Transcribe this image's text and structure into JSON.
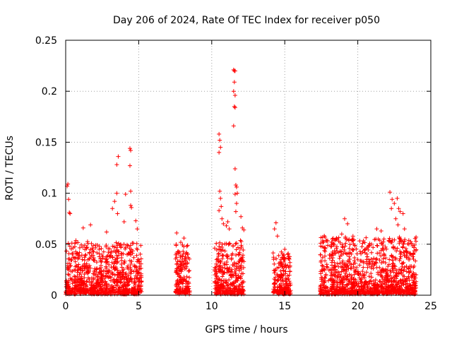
{
  "chart_data": {
    "type": "scatter",
    "title": "Day 206 of 2024, Rate Of TEC Index for receiver p050",
    "xlabel": "GPS time / hours",
    "ylabel": "ROTI / TECUs",
    "xlim": [
      0,
      25
    ],
    "ylim": [
      0,
      0.25
    ],
    "xticks": [
      "0",
      "5",
      "10",
      "15",
      "20",
      "25"
    ],
    "yticks": [
      "0",
      "0.05",
      "0.1",
      "0.15",
      "0.2",
      "0.25"
    ],
    "grid": true,
    "marker": "+",
    "color": "#ff0000",
    "segments": [
      {
        "start": 0.0,
        "end": 5.2,
        "typical_max": 0.05
      },
      {
        "start": 7.5,
        "end": 8.5,
        "typical_max": 0.05
      },
      {
        "start": 10.2,
        "end": 12.2,
        "typical_max": 0.05
      },
      {
        "start": 14.2,
        "end": 15.4,
        "typical_max": 0.04
      },
      {
        "start": 17.4,
        "end": 24.0,
        "typical_max": 0.055
      }
    ],
    "highlight_points": [
      [
        0.1,
        0.107
      ],
      [
        0.15,
        0.109
      ],
      [
        0.2,
        0.094
      ],
      [
        0.25,
        0.081
      ],
      [
        0.3,
        0.08
      ],
      [
        0.7,
        0.052
      ],
      [
        1.2,
        0.066
      ],
      [
        1.7,
        0.069
      ],
      [
        2.8,
        0.062
      ],
      [
        3.2,
        0.085
      ],
      [
        3.35,
        0.092
      ],
      [
        3.5,
        0.1
      ],
      [
        3.55,
        0.08
      ],
      [
        3.5,
        0.128
      ],
      [
        3.6,
        0.136
      ],
      [
        4.0,
        0.072
      ],
      [
        4.1,
        0.099
      ],
      [
        4.4,
        0.144
      ],
      [
        4.45,
        0.142
      ],
      [
        4.4,
        0.127
      ],
      [
        4.45,
        0.102
      ],
      [
        4.45,
        0.088
      ],
      [
        4.5,
        0.086
      ],
      [
        4.8,
        0.073
      ],
      [
        4.9,
        0.065
      ],
      [
        7.6,
        0.061
      ],
      [
        8.1,
        0.056
      ],
      [
        8.3,
        0.048
      ],
      [
        10.5,
        0.158
      ],
      [
        10.55,
        0.152
      ],
      [
        10.6,
        0.145
      ],
      [
        10.5,
        0.14
      ],
      [
        10.55,
        0.102
      ],
      [
        10.6,
        0.095
      ],
      [
        10.65,
        0.087
      ],
      [
        10.5,
        0.083
      ],
      [
        10.7,
        0.075
      ],
      [
        10.8,
        0.07
      ],
      [
        11.0,
        0.068
      ],
      [
        11.1,
        0.072
      ],
      [
        11.2,
        0.065
      ],
      [
        11.5,
        0.221
      ],
      [
        11.55,
        0.22
      ],
      [
        11.6,
        0.22
      ],
      [
        11.55,
        0.209
      ],
      [
        11.5,
        0.2
      ],
      [
        11.6,
        0.196
      ],
      [
        11.55,
        0.185
      ],
      [
        11.6,
        0.184
      ],
      [
        11.5,
        0.166
      ],
      [
        11.6,
        0.124
      ],
      [
        11.65,
        0.108
      ],
      [
        11.7,
        0.106
      ],
      [
        11.75,
        0.1
      ],
      [
        11.6,
        0.099
      ],
      [
        11.7,
        0.09
      ],
      [
        11.65,
        0.082
      ],
      [
        12.0,
        0.077
      ],
      [
        12.1,
        0.066
      ],
      [
        12.2,
        0.064
      ],
      [
        14.3,
        0.065
      ],
      [
        14.4,
        0.071
      ],
      [
        14.5,
        0.058
      ],
      [
        15.0,
        0.045
      ],
      [
        15.2,
        0.04
      ],
      [
        17.6,
        0.057
      ],
      [
        18.2,
        0.052
      ],
      [
        18.9,
        0.06
      ],
      [
        19.1,
        0.075
      ],
      [
        19.3,
        0.07
      ],
      [
        19.4,
        0.055
      ],
      [
        20.5,
        0.045
      ],
      [
        21.3,
        0.065
      ],
      [
        21.6,
        0.063
      ],
      [
        21.4,
        0.055
      ],
      [
        22.2,
        0.101
      ],
      [
        22.35,
        0.094
      ],
      [
        22.5,
        0.09
      ],
      [
        22.3,
        0.085
      ],
      [
        22.7,
        0.095
      ],
      [
        22.8,
        0.085
      ],
      [
        22.9,
        0.082
      ],
      [
        23.1,
        0.08
      ],
      [
        22.6,
        0.075
      ],
      [
        22.75,
        0.069
      ],
      [
        23.2,
        0.065
      ],
      [
        23.5,
        0.05
      ],
      [
        23.8,
        0.04
      ]
    ]
  }
}
